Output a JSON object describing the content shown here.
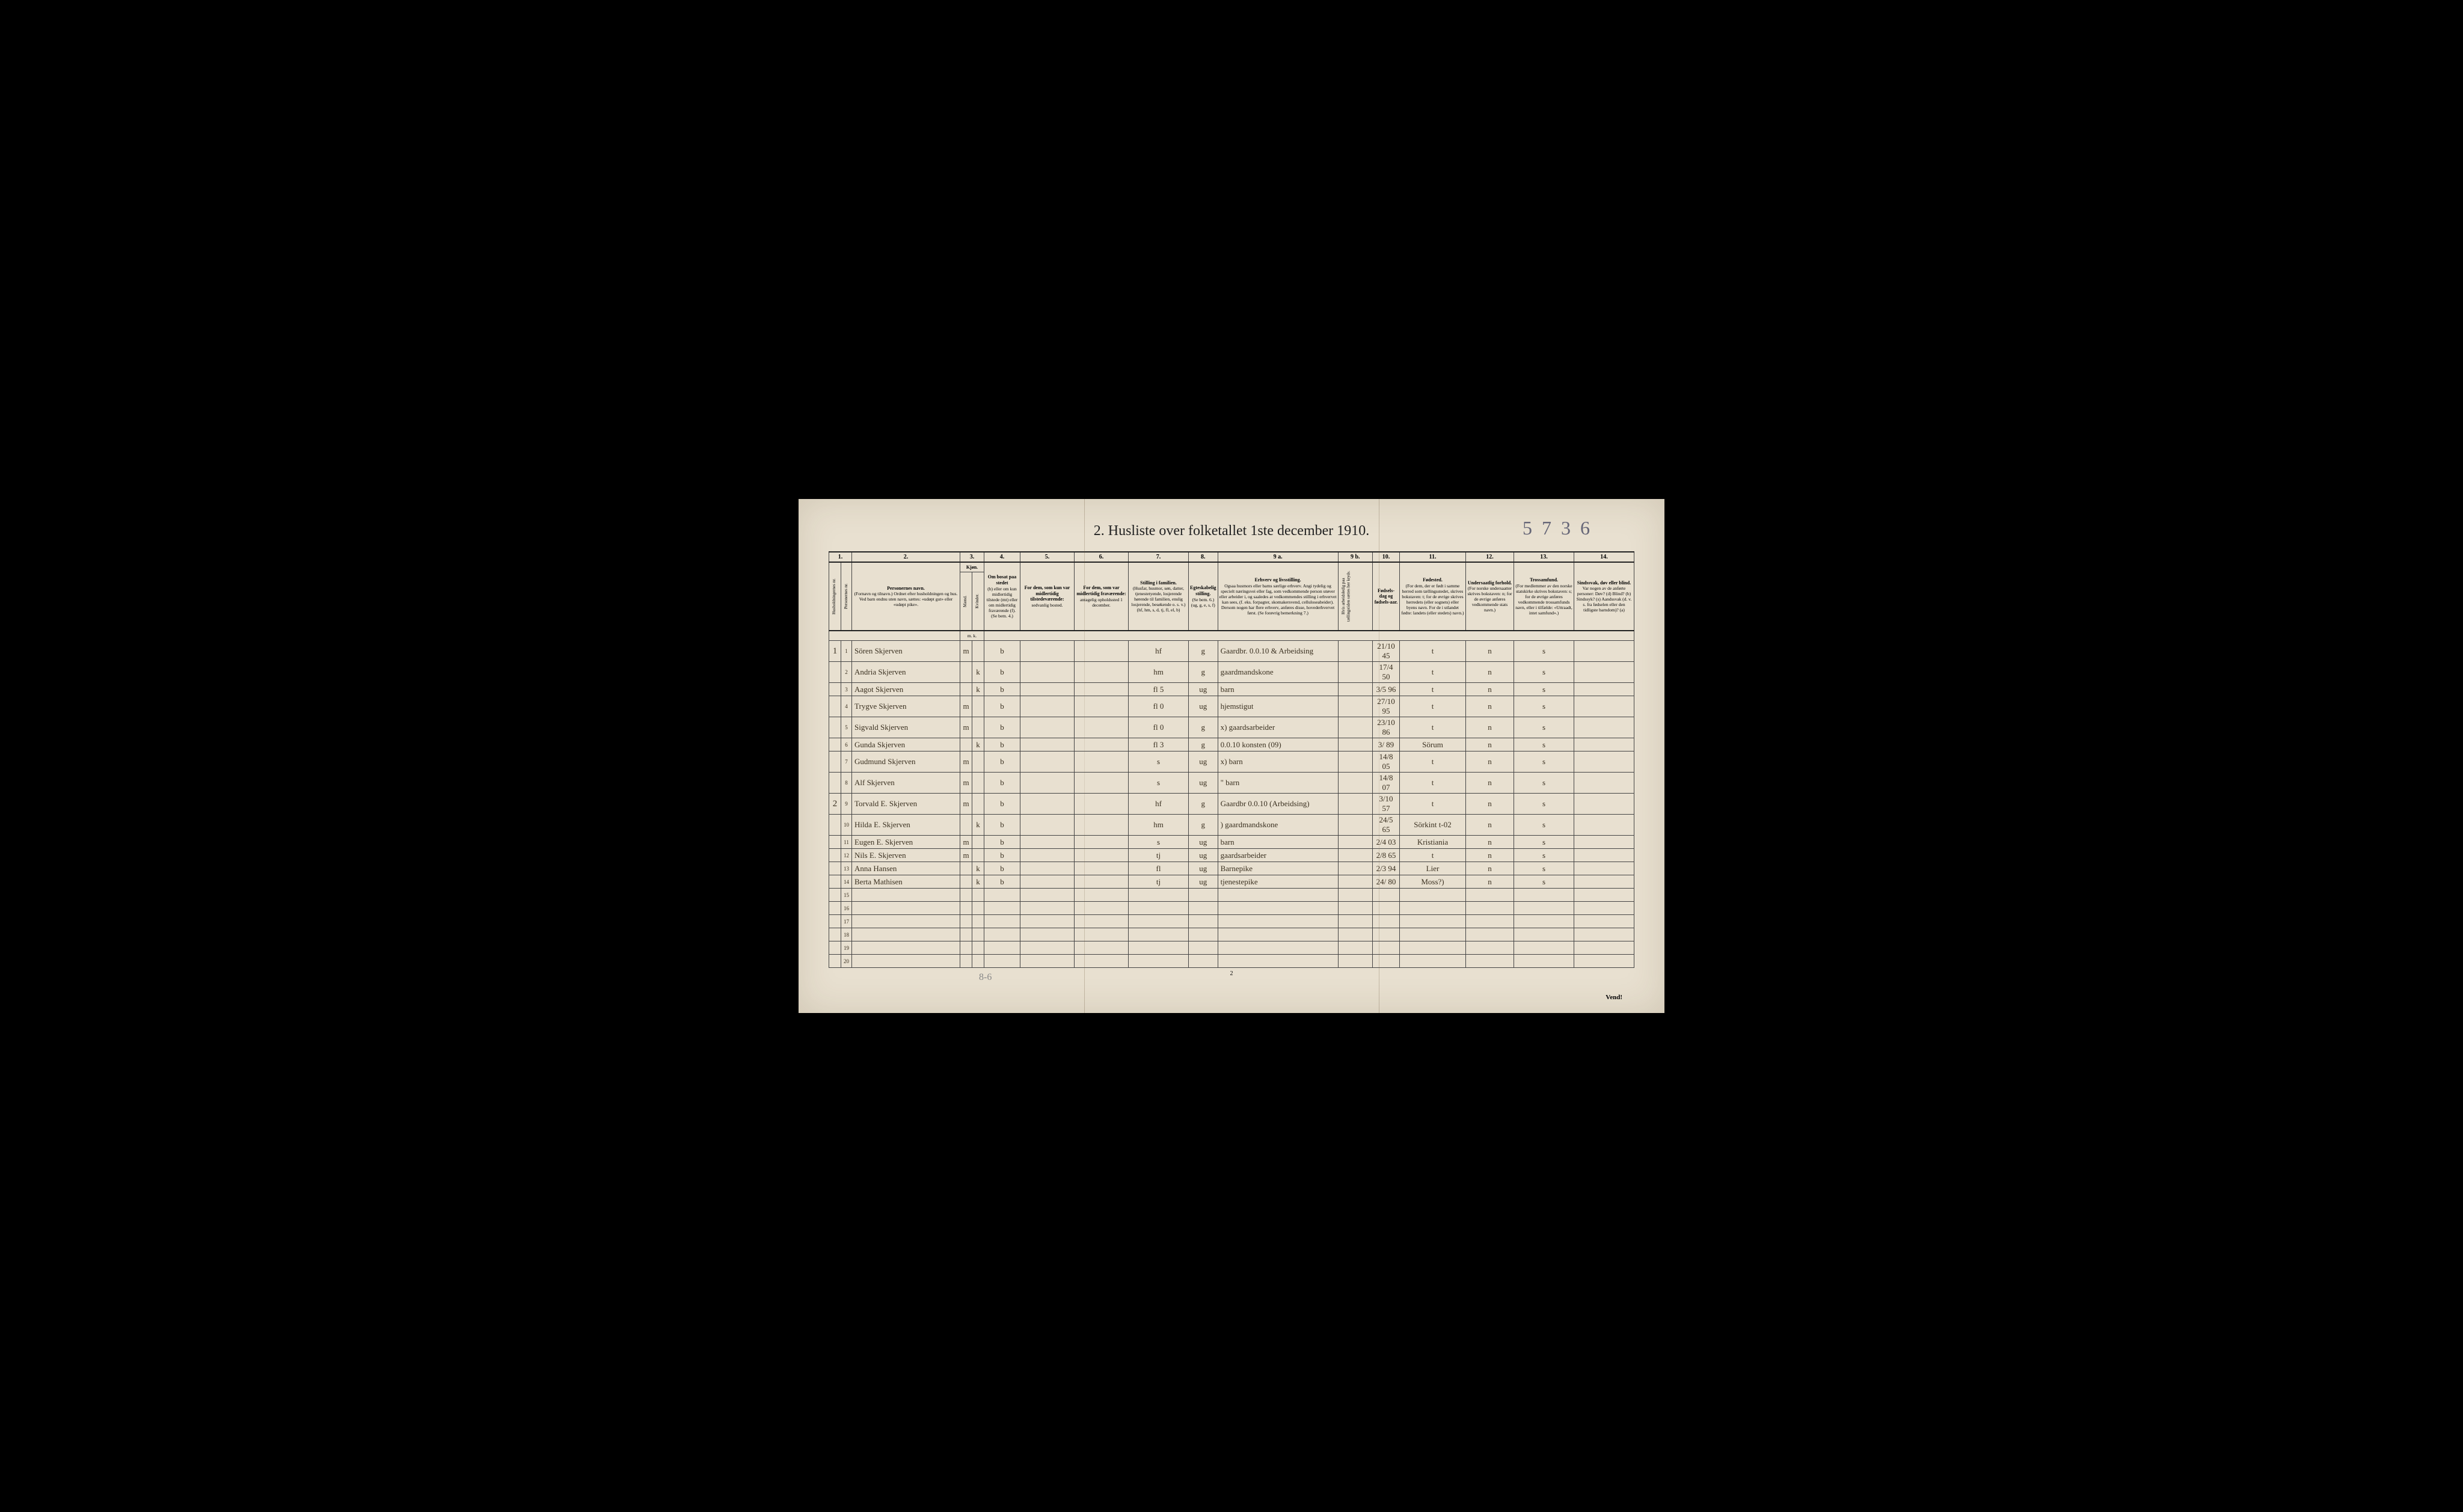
{
  "handwritten_top": "5 7 3 6",
  "title": "2.  Husliste over folketallet 1ste december 1910.",
  "column_numbers": [
    "1.",
    "",
    "2.",
    "3.",
    "4.",
    "5.",
    "6.",
    "7.",
    "8.",
    "9 a.",
    "9 b.",
    "10.",
    "11.",
    "12.",
    "13.",
    "14."
  ],
  "headers": {
    "col1": "Husholdningernes nr.",
    "col1b": "Personernes nr.",
    "col2": {
      "title": "Personernes navn.",
      "sub": "(Fornavn og tilnavn.)\nOrdnet efter husholdningen og hus.\nVed barn endnu uten navn, sættes: «udøpt gut» eller «udøpt pike»."
    },
    "col3": {
      "title": "Kjøn.",
      "sub1": "Mænd.",
      "sub2": "Kvinder."
    },
    "col4": {
      "title": "Om bosat paa stedet",
      "sub": "(b) eller om kun midlertidig tilstede (mt) eller om midlertidig fraværende (f).\n(Se bem. 4.)"
    },
    "col5": {
      "title": "For dem, som kun var midlertidig tilstedeværende:",
      "sub": "sedvanlig bosted."
    },
    "col6": {
      "title": "For dem, som var midlertidig fraværende:",
      "sub": "antagelig opholdssted 1 december."
    },
    "col7": {
      "title": "Stilling i familien.",
      "sub": "(Husfar, husmor, søn, datter, tjenestetyende, losjerende hørende til familien, enslig losjerende, besøkende o. s. v.)\n(hf, hm, s, d, tj, fl, el, b)"
    },
    "col8": {
      "title": "Egteskabelig stilling.",
      "sub": "(Se bem. 6.)\n(ug, g, e, s, f)"
    },
    "col9a": {
      "title": "Erhverv og livsstilling.",
      "sub": "Ogsaa husmors eller barns særlige erhverv. Angi tydelig og specielt næringsvei eller fag, som vedkommende person utøver eller arbeider i, og saaledes at vedkommendes stilling i erhvervet kan sees, (f. eks. forpagter, skomakersvend, celluloseabeider). Dersom nogen har flere erhverv, anføres disse, hovederhvervet først.\n(Se forøvrig bemerkning 7.)"
    },
    "col9b": "Hvis arbeidsledig paa tællingstiden sættes her kryds.",
    "col10": {
      "title": "Fødsels-dag og fødsels-aar."
    },
    "col11": {
      "title": "Fødested.",
      "sub": "(For dem, der er født i samme herred som tællingsstedet, skrives bokstaven: t; for de øvrige skrives herredets (eller sognets) eller byens navn. For de i utlandet fødte: landets (eller stedets) navn.)"
    },
    "col12": {
      "title": "Undersaatlig forhold.",
      "sub": "(For norske undersaatter skrives bokstaven: n; for de øvrige anføres vedkommende stats navn.)"
    },
    "col13": {
      "title": "Trossamfund.",
      "sub": "(For medlemmer av den norske statskirke skrives bokstaven: s; for de øvrige anføres vedkommende trossamfunds navn, eller i tilfælde: «Uttraadt, intet samfund».)"
    },
    "col14": {
      "title": "Sindssvak, døv eller blind.",
      "sub": "Var nogen av de anførte personer:\nDøv?         (d)\nBlind?       (b)\nSindssyk? (s)\nAandssvak (d. v. s. fra fødselen eller den tidligste barndom)? (a)"
    },
    "mk": "m. k."
  },
  "rows": [
    {
      "hh": "1",
      "pn": "1",
      "name": "Sören Skjerven",
      "sex_m": "m",
      "sex_k": "",
      "status": "b",
      "col5": "",
      "col6": "",
      "famstill": "hf",
      "egte": "g",
      "erhverv": "Gaardbr. 0.0.10 & Arbeidsing",
      "arb": "",
      "fdato": "21/10 45",
      "fsted": "t",
      "under": "n",
      "tros": "s",
      "c14": ""
    },
    {
      "hh": "",
      "pn": "2",
      "name": "Andria Skjerven",
      "sex_m": "",
      "sex_k": "k",
      "status": "b",
      "col5": "",
      "col6": "",
      "famstill": "hm",
      "egte": "g",
      "erhverv": "gaardmandskone",
      "arb": "",
      "fdato": "17/4 50",
      "fsted": "t",
      "under": "n",
      "tros": "s",
      "c14": ""
    },
    {
      "hh": "",
      "pn": "3",
      "name": "Aagot Skjerven",
      "sex_m": "",
      "sex_k": "k",
      "status": "b",
      "col5": "",
      "col6": "",
      "famstill": "fl    5",
      "egte": "ug",
      "erhverv": "barn",
      "arb": "",
      "fdato": "3/5 96",
      "fsted": "t",
      "under": "n",
      "tros": "s",
      "c14": ""
    },
    {
      "hh": "",
      "pn": "4",
      "name": "Trygve Skjerven",
      "sex_m": "m",
      "sex_k": "",
      "status": "b",
      "col5": "",
      "col6": "",
      "famstill": "fl    0",
      "egte": "ug",
      "erhverv": "hjemstigut",
      "arb": "",
      "fdato": "27/10 95",
      "fsted": "t",
      "under": "n",
      "tros": "s",
      "c14": ""
    },
    {
      "hh": "",
      "pn": "5",
      "name": "Sigvald Skjerven",
      "sex_m": "m",
      "sex_k": "",
      "status": "b",
      "col5": "",
      "col6": "",
      "famstill": "fl    0",
      "egte": "g",
      "erhverv": "x) gaardsarbeider",
      "arb": "",
      "fdato": "23/10 86",
      "fsted": "t",
      "under": "n",
      "tros": "s",
      "c14": ""
    },
    {
      "hh": "",
      "pn": "6",
      "name": "Gunda Skjerven",
      "sex_m": "",
      "sex_k": "k",
      "status": "b",
      "col5": "",
      "col6": "",
      "famstill": "fl    3",
      "egte": "g",
      "erhverv": "0.0.10 konsten (09)",
      "arb": "",
      "fdato": "3/ 89",
      "fsted": "Sörum",
      "under": "n",
      "tros": "s",
      "c14": ""
    },
    {
      "hh": "",
      "pn": "7",
      "name": "Gudmund Skjerven",
      "sex_m": "m",
      "sex_k": "",
      "status": "b",
      "col5": "",
      "col6": "",
      "famstill": "s",
      "egte": "ug",
      "erhverv": "x) barn",
      "arb": "",
      "fdato": "14/8 05",
      "fsted": "t",
      "under": "n",
      "tros": "s",
      "c14": ""
    },
    {
      "hh": "",
      "pn": "8",
      "name": "Alf    Skjerven",
      "sex_m": "m",
      "sex_k": "",
      "status": "b",
      "col5": "",
      "col6": "",
      "famstill": "s",
      "egte": "ug",
      "erhverv": "\"  barn",
      "arb": "",
      "fdato": "14/8 07",
      "fsted": "t",
      "under": "n",
      "tros": "s",
      "c14": ""
    },
    {
      "hh": "2",
      "pn": "9",
      "name": "Torvald E. Skjerven",
      "sex_m": "m",
      "sex_k": "",
      "status": "b",
      "col5": "",
      "col6": "",
      "famstill": "hf",
      "egte": "g",
      "erhverv": "Gaardbr 0.0.10 (Arbeidsing)",
      "arb": "",
      "fdato": "3/10 57",
      "fsted": "t",
      "under": "n",
      "tros": "s",
      "c14": ""
    },
    {
      "hh": "",
      "pn": "10",
      "name": "Hilda E. Skjerven",
      "sex_m": "",
      "sex_k": "k",
      "status": "b",
      "col5": "",
      "col6": "",
      "famstill": "hm",
      "egte": "g",
      "erhverv": ") gaardmandskone",
      "arb": "",
      "fdato": "24/5 65",
      "fsted": "Sörkint t-02",
      "under": "n",
      "tros": "s",
      "c14": ""
    },
    {
      "hh": "",
      "pn": "11",
      "name": "Eugen E. Skjerven",
      "sex_m": "m",
      "sex_k": "",
      "status": "b",
      "col5": "",
      "col6": "",
      "famstill": "s",
      "egte": "ug",
      "erhverv": "barn",
      "arb": "",
      "fdato": "2/4 03",
      "fsted": "Kristiania",
      "under": "n",
      "tros": "s",
      "c14": ""
    },
    {
      "hh": "",
      "pn": "12",
      "name": "Nils E. Skjerven",
      "sex_m": "m",
      "sex_k": "",
      "status": "b",
      "col5": "",
      "col6": "",
      "famstill": "tj",
      "egte": "ug",
      "erhverv": "gaardsarbeider",
      "arb": "",
      "fdato": "2/8 65",
      "fsted": "t",
      "under": "n",
      "tros": "s",
      "c14": ""
    },
    {
      "hh": "",
      "pn": "13",
      "name": "Anna Hansen",
      "sex_m": "",
      "sex_k": "k",
      "status": "b",
      "col5": "",
      "col6": "",
      "famstill": "fl",
      "egte": "ug",
      "erhverv": "Barnepike",
      "arb": "",
      "fdato": "2/3 94",
      "fsted": "Lier",
      "under": "n",
      "tros": "s",
      "c14": ""
    },
    {
      "hh": "",
      "pn": "14",
      "name": "Berta Mathisen",
      "sex_m": "",
      "sex_k": "k",
      "status": "b",
      "col5": "",
      "col6": "",
      "famstill": "tj",
      "egte": "ug",
      "erhverv": "tjenestepike",
      "arb": "",
      "fdato": "24/ 80",
      "fsted": "Moss?)",
      "under": "n",
      "tros": "s",
      "c14": ""
    }
  ],
  "empty_rows": [
    "15",
    "16",
    "17",
    "18",
    "19",
    "20"
  ],
  "footer": {
    "vend": "Vend!",
    "page": "2",
    "pencil": "8-6"
  },
  "colors": {
    "paper": "#e8e0d0",
    "ink": "#222",
    "handwriting": "#3a3020",
    "pencil": "#888",
    "border": "#444"
  }
}
